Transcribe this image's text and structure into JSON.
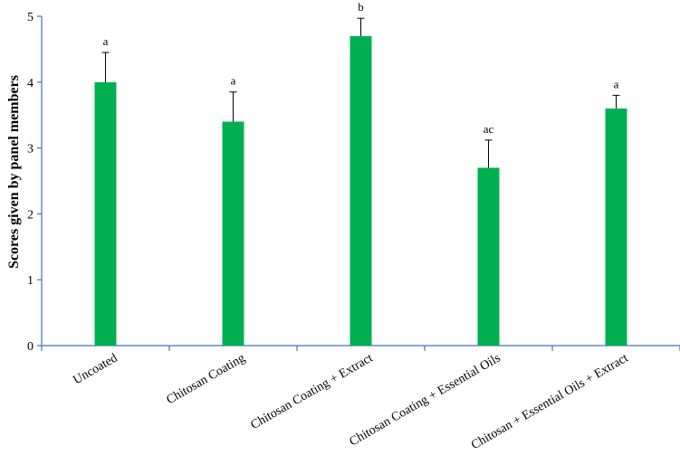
{
  "chart_data": {
    "type": "bar",
    "title": "",
    "xlabel": "",
    "ylabel": "Scores given by panel members",
    "ylim": [
      0,
      5
    ],
    "yticks": [
      0,
      1,
      2,
      3,
      4,
      5
    ],
    "grid": false,
    "legend": "none",
    "categories": [
      "Uncoated",
      "Chitosan Coating",
      "Chitosan Coating + Extract",
      "Chitosan Coating + Essential Oils",
      "Chitosan + Essential Oils + Extract"
    ],
    "values": [
      4.0,
      3.4,
      4.7,
      2.7,
      3.6
    ],
    "error_plus": [
      0.45,
      0.45,
      0.27,
      0.42,
      0.2
    ],
    "significance_letters": [
      "a",
      "a",
      "b",
      "ac",
      "a"
    ],
    "bar_color": "#00B050",
    "axis_color": "#4472C4"
  }
}
